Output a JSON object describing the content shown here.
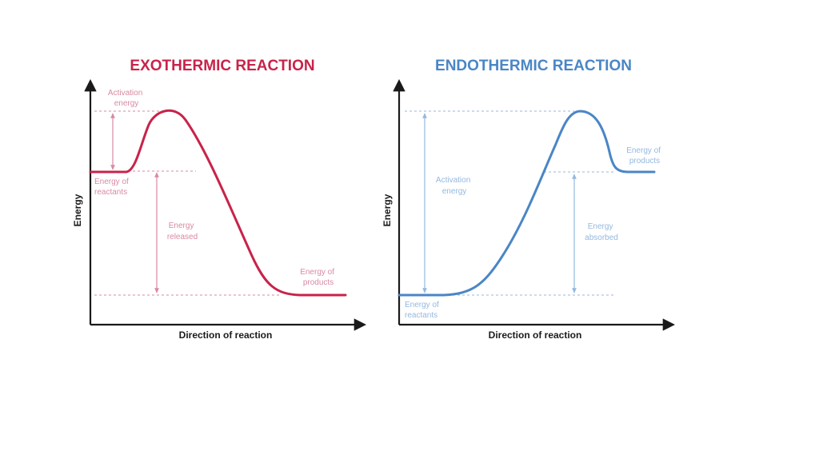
{
  "colors": {
    "exo": "#c8234a",
    "exo_light": "#d98aa0",
    "endo": "#4a86c5",
    "endo_light": "#94b8df",
    "axis": "#1a1a1a"
  },
  "exothermic": {
    "title": "EXOTHERMIC REACTION",
    "y_label": "Energy",
    "x_label": "Direction of reaction",
    "activation_energy": [
      "Activation",
      "energy"
    ],
    "energy_of_reactants": [
      "Energy of",
      "reactants"
    ],
    "energy_released": [
      "Energy",
      "released"
    ],
    "energy_of_products": [
      "Energy of",
      "products"
    ]
  },
  "endothermic": {
    "title": "ENDOTHERMIC REACTION",
    "y_label": "Energy",
    "x_label": "Direction of reaction",
    "activation_energy": [
      "Activation",
      "energy"
    ],
    "energy_of_reactants": [
      "Energy of",
      "reactants"
    ],
    "energy_absorbed": [
      "Energy",
      "absorbed"
    ],
    "energy_of_products": [
      "Energy of",
      "products"
    ]
  }
}
